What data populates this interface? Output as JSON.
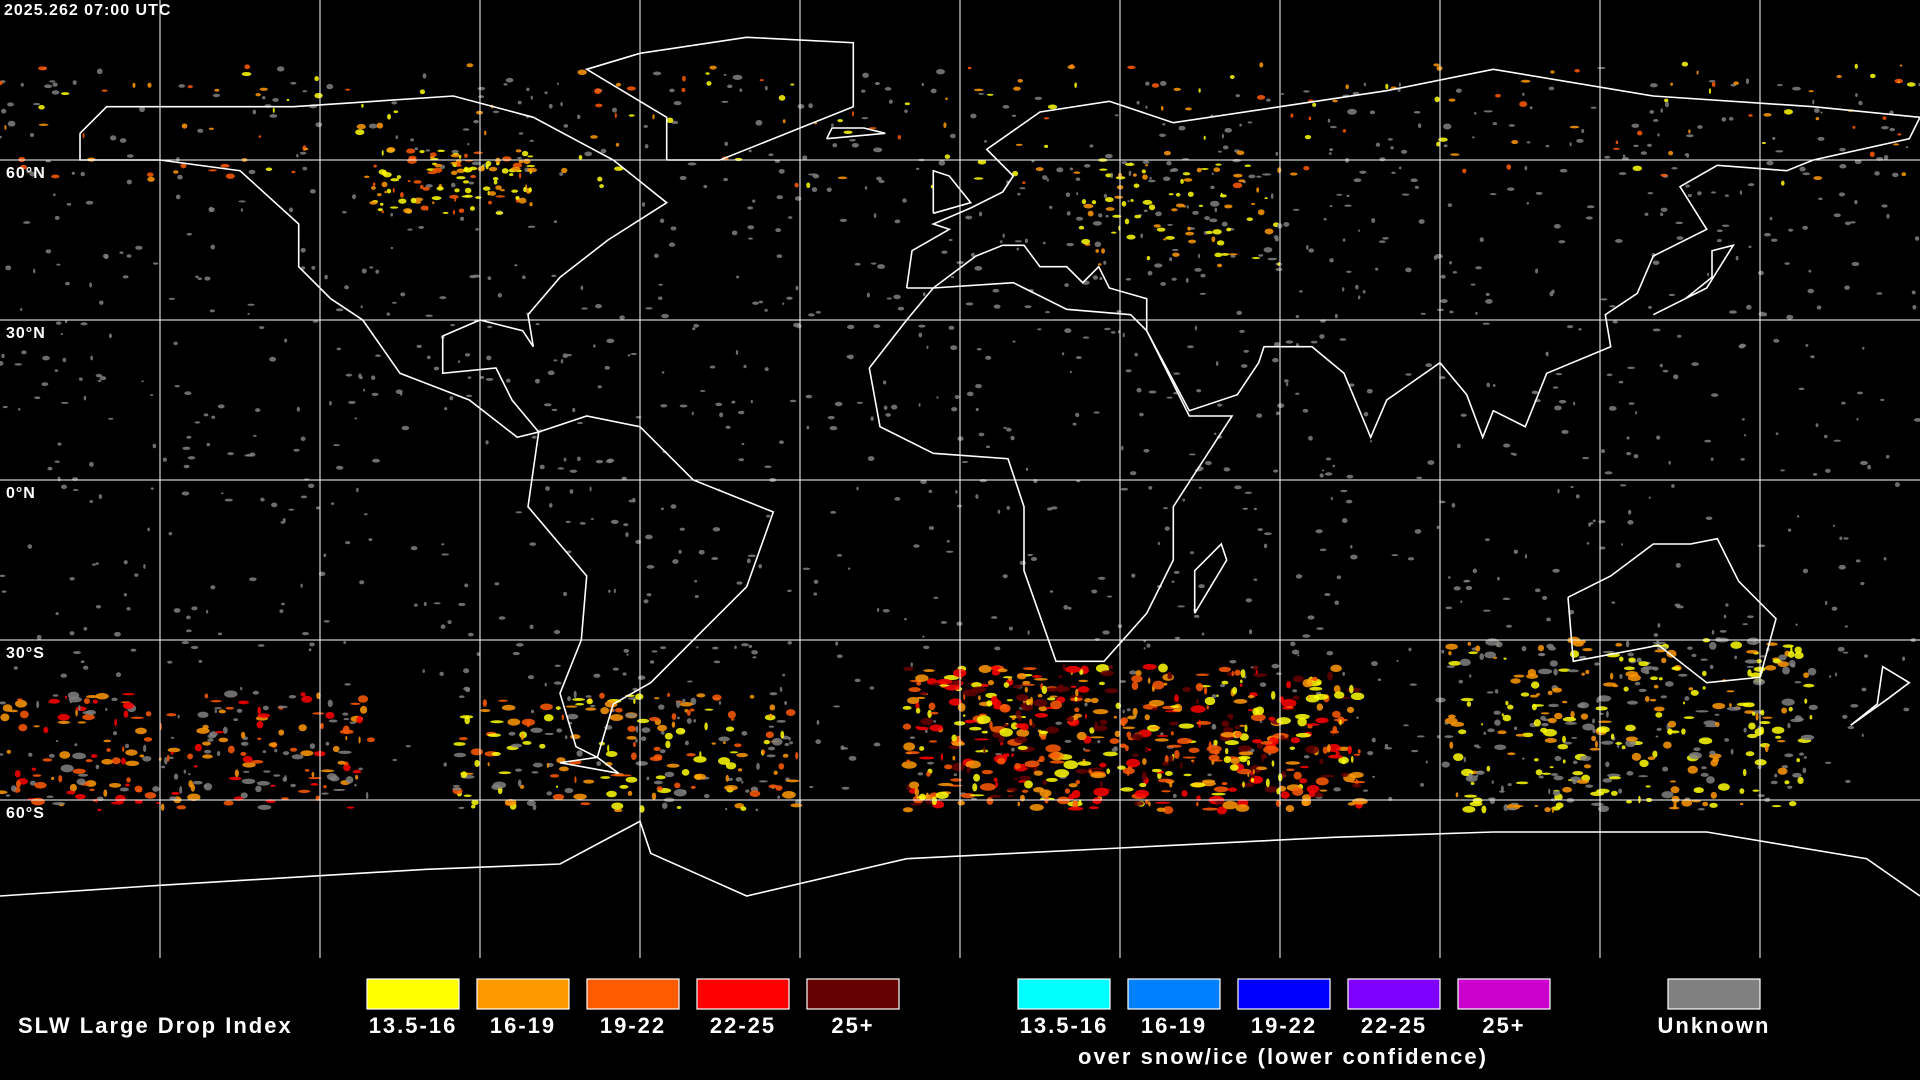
{
  "timestamp": "2025.262 07:00 UTC",
  "map": {
    "lat_labels": [
      "60°N",
      "30°N",
      "0°N",
      "30°S",
      "60°S"
    ]
  },
  "legend": {
    "title": "SLW Large Drop Index",
    "liquid": [
      {
        "label": "13.5-16",
        "color": "#ffff00"
      },
      {
        "label": "16-19",
        "color": "#ff9900"
      },
      {
        "label": "19-22",
        "color": "#ff5a00"
      },
      {
        "label": "22-25",
        "color": "#ff0000"
      },
      {
        "label": "25+",
        "color": "#660000"
      }
    ],
    "ice": {
      "items": [
        {
          "label": "13.5-16",
          "color": "#00ffff"
        },
        {
          "label": "16-19",
          "color": "#0080ff"
        },
        {
          "label": "19-22",
          "color": "#0000ff"
        },
        {
          "label": "22-25",
          "color": "#8000ff"
        },
        {
          "label": "25+",
          "color": "#cc00cc"
        }
      ],
      "caption": "over snow/ice (lower confidence)"
    },
    "unknown": {
      "label": "Unknown",
      "color": "#808080"
    }
  }
}
